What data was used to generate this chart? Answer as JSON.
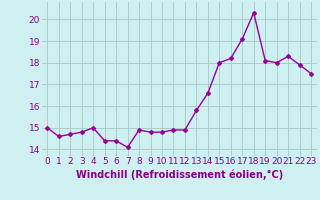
{
  "x": [
    0,
    1,
    2,
    3,
    4,
    5,
    6,
    7,
    8,
    9,
    10,
    11,
    12,
    13,
    14,
    15,
    16,
    17,
    18,
    19,
    20,
    21,
    22,
    23
  ],
  "y": [
    15.0,
    14.6,
    14.7,
    14.8,
    15.0,
    14.4,
    14.4,
    14.1,
    14.9,
    14.8,
    14.8,
    14.9,
    14.9,
    15.8,
    16.6,
    18.0,
    18.2,
    19.1,
    20.3,
    18.1,
    18.0,
    18.3,
    17.9,
    17.5
  ],
  "line_color": "#990099",
  "marker": "D",
  "marker_size": 2.0,
  "linewidth": 1.0,
  "background_color": "#cff0f0",
  "grid_color": "#aacccc",
  "xlabel": "Windchill (Refroidissement éolien,°C)",
  "xlabel_fontsize": 7,
  "ylim": [
    13.7,
    20.8
  ],
  "xlim": [
    -0.5,
    23.5
  ],
  "yticks": [
    14,
    15,
    16,
    17,
    18,
    19,
    20
  ],
  "xticks": [
    0,
    1,
    2,
    3,
    4,
    5,
    6,
    7,
    8,
    9,
    10,
    11,
    12,
    13,
    14,
    15,
    16,
    17,
    18,
    19,
    20,
    21,
    22,
    23
  ],
  "xtick_labels": [
    "0",
    "1",
    "2",
    "3",
    "4",
    "5",
    "6",
    "7",
    "8",
    "9",
    "10",
    "11",
    "12",
    "13",
    "14",
    "15",
    "16",
    "17",
    "18",
    "19",
    "20",
    "21",
    "22",
    "23"
  ],
  "tick_fontsize": 6.5,
  "tick_color": "#880088"
}
